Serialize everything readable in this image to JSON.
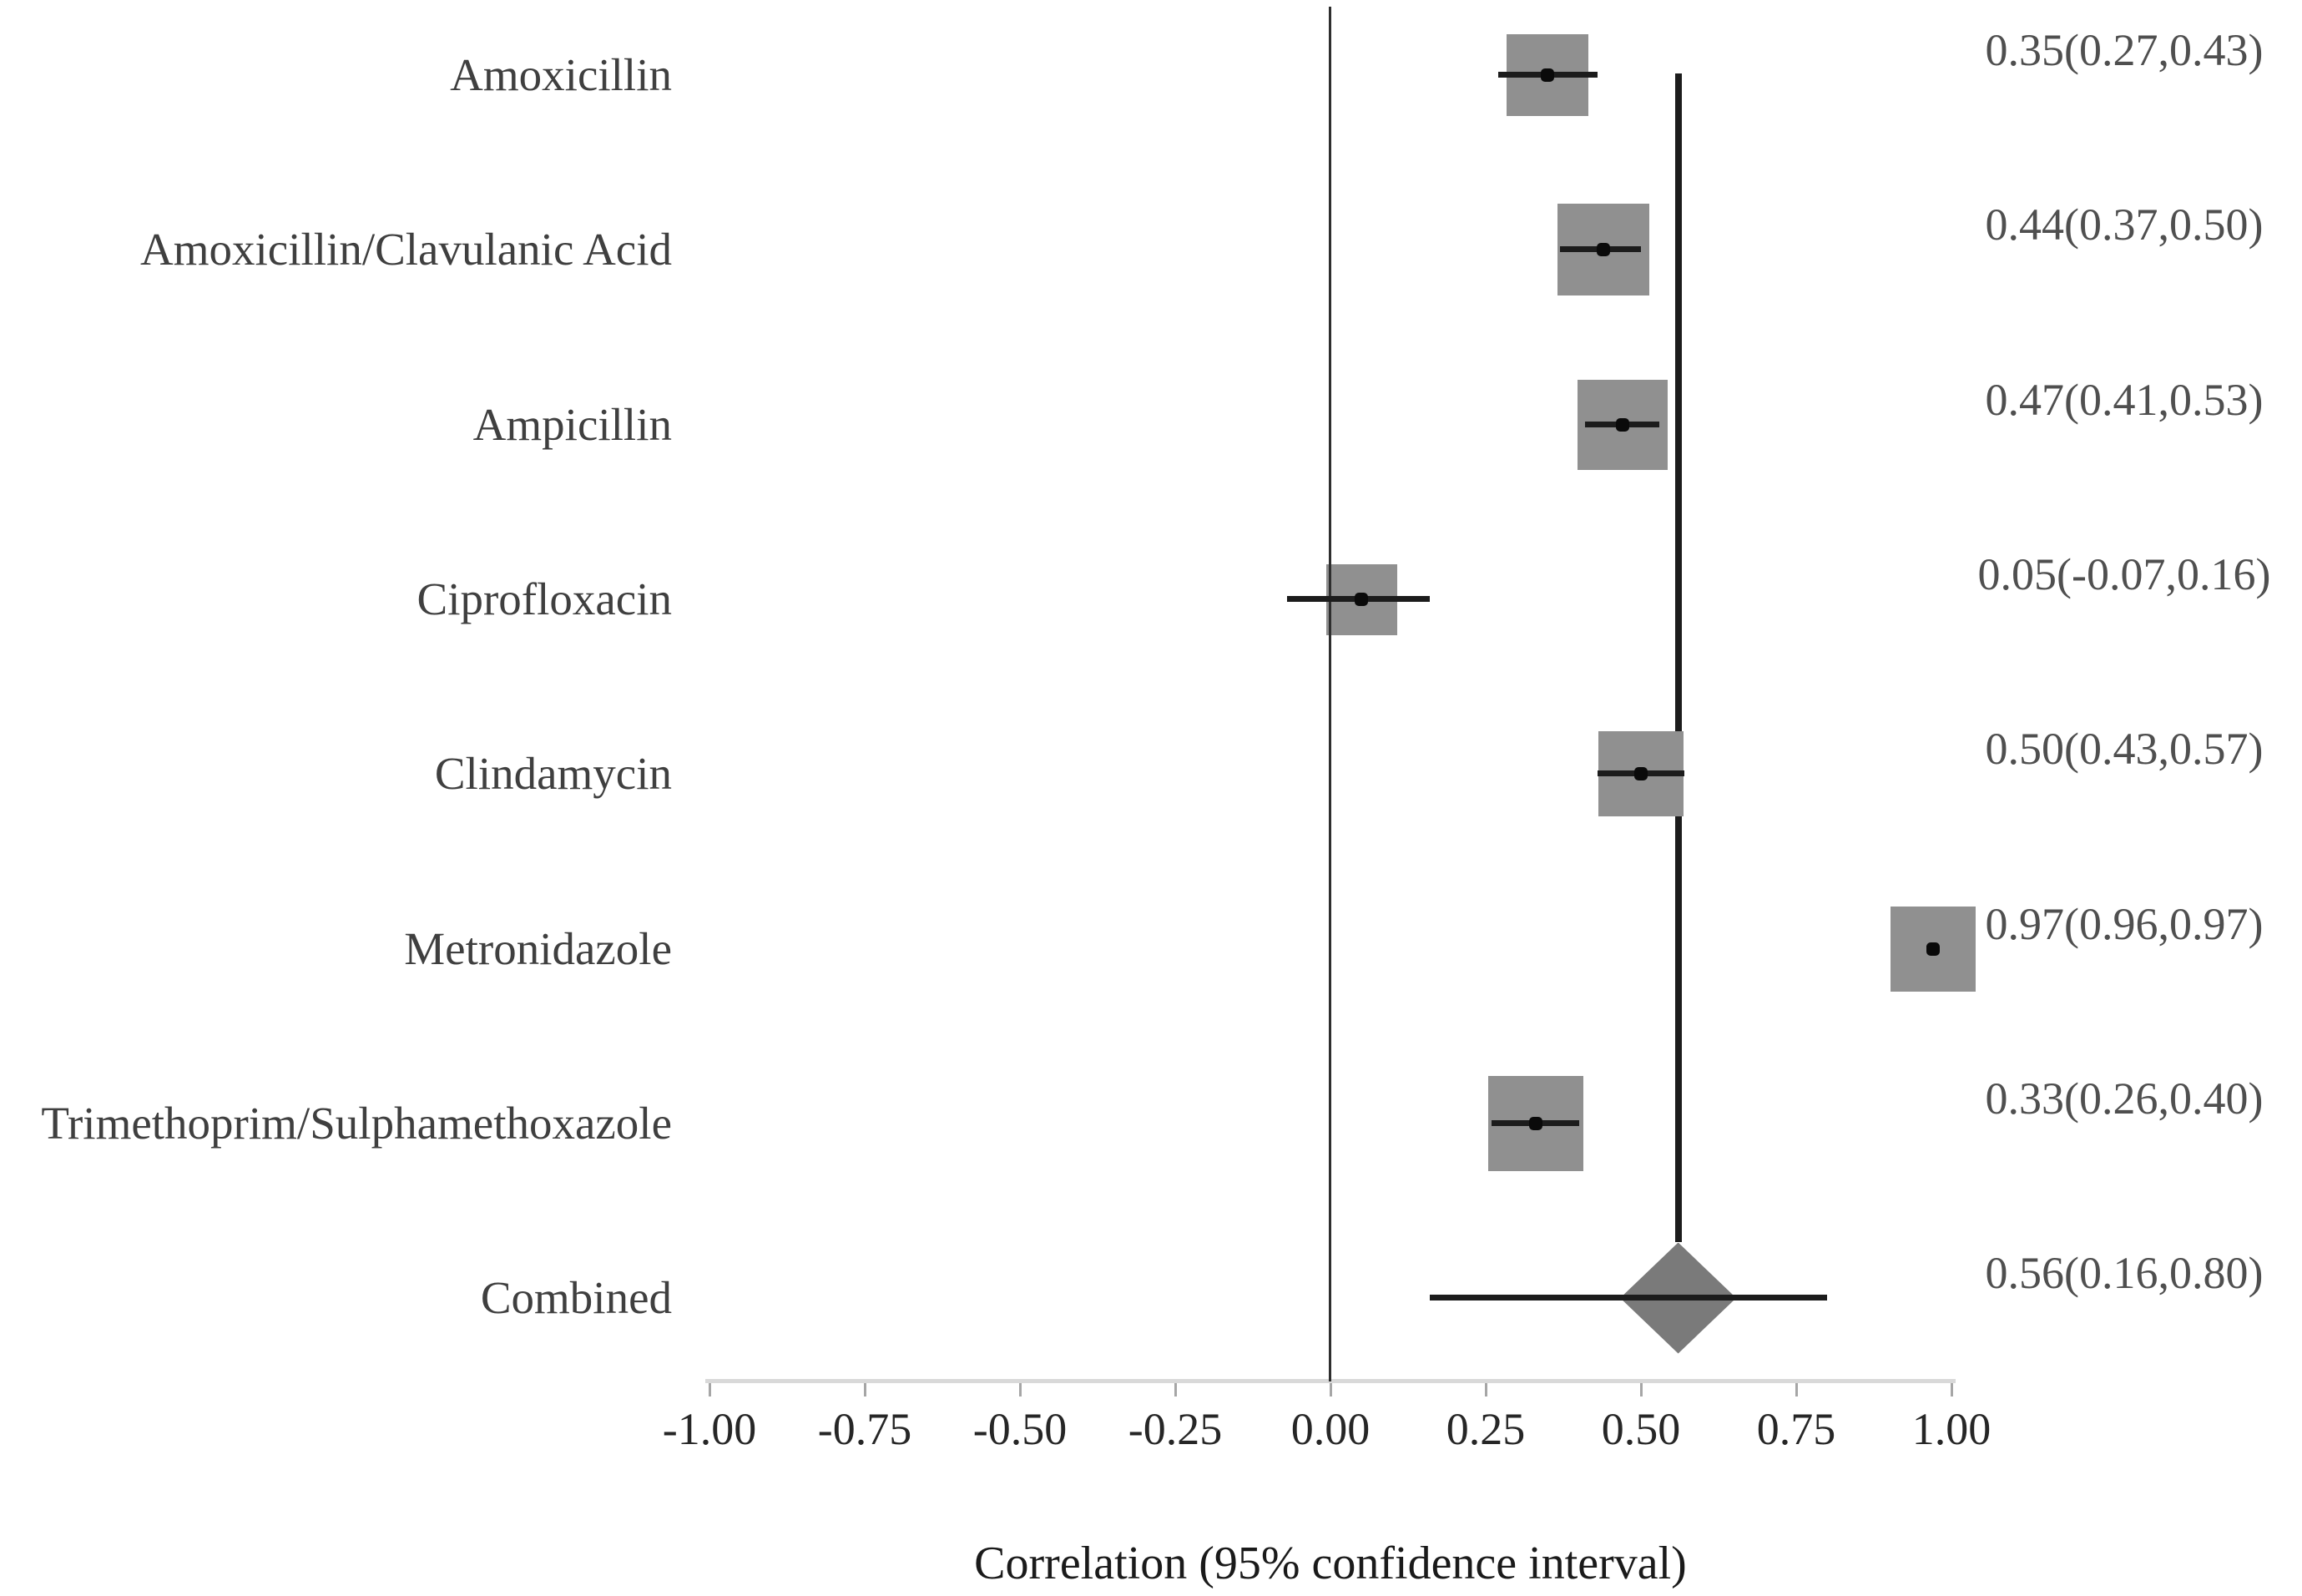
{
  "chart_data": {
    "type": "scatter",
    "subtype": "forest_plot",
    "title": "",
    "xlabel": "Correlation (95% confidence interval)",
    "ylabel": "",
    "xlim": [
      -1.0,
      1.0
    ],
    "grid": false,
    "x_tick_values": [
      -1.0,
      -0.75,
      -0.5,
      -0.25,
      0.0,
      0.25,
      0.5,
      0.75,
      1.0
    ],
    "x_tick_labels": [
      "-1.00",
      "-0.75",
      "-0.50",
      "-0.25",
      "0.00",
      "0.25",
      "0.50",
      "0.75",
      "1.00"
    ],
    "reference_line_value": 0.0,
    "pooled_line_value": 0.56,
    "studies": [
      {
        "label": "Amoxicillin",
        "estimate": 0.35,
        "ci_low": 0.27,
        "ci_high": 0.43,
        "display": "0.35(0.27,0.43)",
        "marker": "square",
        "marker_size": 98
      },
      {
        "label": "Amoxicillin/Clavulanic Acid",
        "estimate": 0.44,
        "ci_low": 0.37,
        "ci_high": 0.5,
        "display": "0.44(0.37,0.50)",
        "marker": "square",
        "marker_size": 110
      },
      {
        "label": "Ampicillin",
        "estimate": 0.47,
        "ci_low": 0.41,
        "ci_high": 0.53,
        "display": "0.47(0.41,0.53)",
        "marker": "square",
        "marker_size": 108
      },
      {
        "label": "Ciprofloxacin",
        "estimate": 0.05,
        "ci_low": -0.07,
        "ci_high": 0.16,
        "display": "0.05(-0.07,0.16)",
        "marker": "square",
        "marker_size": 85
      },
      {
        "label": "Clindamycin",
        "estimate": 0.5,
        "ci_low": 0.43,
        "ci_high": 0.57,
        "display": "0.50(0.43,0.57)",
        "marker": "square",
        "marker_size": 102
      },
      {
        "label": "Metronidazole",
        "estimate": 0.97,
        "ci_low": 0.96,
        "ci_high": 0.97,
        "display": "0.97(0.96,0.97)",
        "marker": "square",
        "marker_size": 102
      },
      {
        "label": "Trimethoprim/Sulphamethoxazole",
        "estimate": 0.33,
        "ci_low": 0.26,
        "ci_high": 0.4,
        "display": "0.33(0.26,0.40)",
        "marker": "square",
        "marker_size": 114
      },
      {
        "label": "Combined",
        "estimate": 0.56,
        "ci_low": 0.16,
        "ci_high": 0.8,
        "display": "0.56(0.16,0.80)",
        "marker": "diamond",
        "marker_size": 139
      }
    ],
    "colors": {
      "square_fill": "#909090",
      "diamond_fill": "#7a7a7a",
      "ci_line": "#1c1c1c",
      "reference_line": "#2e2e2e",
      "pooled_line": "#1c1c1c",
      "axis_line": "#d9d9d9",
      "tick_mark": "#a6a6a6",
      "dot": "#0a0a0a"
    }
  }
}
